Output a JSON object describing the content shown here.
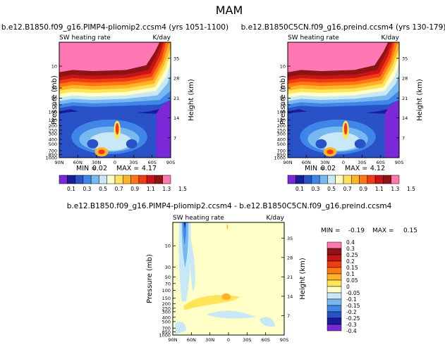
{
  "page_title": "MAM",
  "chart_data": [
    {
      "type": "heatmap",
      "title": "b.e12.B1850.f09_g16.PIMP4-pliomip2.ccsm4 (yrs 1051-1100)",
      "subtitle_left": "SW heating rate",
      "subtitle_right": "K/day",
      "ylabel": "Pressure (mb)",
      "ylabel_right": "Height (km)",
      "x_ticks": [
        "90N",
        "60N",
        "30N",
        "0",
        "30S",
        "60S",
        "90S"
      ],
      "y_ticks": [
        "10",
        "30",
        "50",
        "70",
        "100",
        "150",
        "200",
        "250",
        "300",
        "400",
        "500",
        "700",
        "850",
        "1000"
      ],
      "y2_ticks": [
        "35",
        "28",
        "21",
        "14",
        "7"
      ],
      "stats": {
        "min_label": "MIN =",
        "min": "0.02",
        "max_label": "MAX =",
        "max": "4.17"
      },
      "palette": [
        "#7a28d8",
        "#1a1a9a",
        "#2a52c8",
        "#3f86e8",
        "#78b8f0",
        "#c8e8f8",
        "#ffffc8",
        "#ffe45a",
        "#ffb428",
        "#ff7814",
        "#f03c14",
        "#c81414",
        "#8c1414",
        "#ff78b4"
      ],
      "pattern": "base"
    },
    {
      "type": "heatmap",
      "title": "b.e12.B1850C5CN.f09_g16.preind.ccsm4 (yrs 130-179)",
      "subtitle_left": "SW heating rate",
      "subtitle_right": "K/day",
      "ylabel": "Pressure (mb)",
      "ylabel_right": "Height (km)",
      "x_ticks": [
        "90N",
        "60N",
        "30N",
        "0",
        "30S",
        "60S",
        "90S"
      ],
      "y_ticks": [
        "10",
        "30",
        "50",
        "70",
        "100",
        "150",
        "200",
        "250",
        "300",
        "400",
        "500",
        "700",
        "850",
        "1000"
      ],
      "y2_ticks": [
        "35",
        "28",
        "21",
        "14",
        "7"
      ],
      "stats": {
        "min_label": "MIN =",
        "min": "0.02",
        "max_label": "MAX =",
        "max": "4.12"
      },
      "palette": [
        "#7a28d8",
        "#1a1a9a",
        "#2a52c8",
        "#3f86e8",
        "#78b8f0",
        "#c8e8f8",
        "#ffffc8",
        "#ffe45a",
        "#ffb428",
        "#ff7814",
        "#f03c14",
        "#c81414",
        "#8c1414",
        "#ff78b4"
      ],
      "pattern": "base"
    },
    {
      "type": "heatmap",
      "title": "b.e12.B1850.f09_g16.PIMP4-pliomip2.ccsm4 - b.e12.B1850C5CN.f09_g16.preind.ccsm4",
      "subtitle_left": "SW heating rate",
      "subtitle_right": "K/day",
      "ylabel": "Pressure (mb)",
      "ylabel_right": "Height (km)",
      "x_ticks": [
        "90N",
        "60N",
        "30N",
        "0",
        "30S",
        "60S",
        "90S"
      ],
      "y_ticks": [
        "10",
        "30",
        "50",
        "70",
        "100",
        "150",
        "200",
        "250",
        "300",
        "400",
        "500",
        "700",
        "850",
        "1000"
      ],
      "y2_ticks": [
        "35",
        "28",
        "21",
        "14",
        "7"
      ],
      "stats": {
        "min_label": "MIN =",
        "min": "-0.19",
        "max_label": "MAX =",
        "max": "0.15"
      },
      "palette": [
        "#7a28d8",
        "#1a1a9a",
        "#2a52c8",
        "#3f86e8",
        "#78b8f0",
        "#c8e8f8",
        "#ffffc8",
        "#ffe45a",
        "#ffb428",
        "#ff7814",
        "#f03c14",
        "#c81414",
        "#8c1414",
        "#ff78b4"
      ],
      "pattern": "diff"
    }
  ],
  "colorbar_main": {
    "labels": [
      "0.1",
      "0.3",
      "0.5",
      "0.7",
      "0.9",
      "1.1",
      "1.3",
      "1.5"
    ],
    "colors": [
      "#7a28d8",
      "#1a1a9a",
      "#2a52c8",
      "#3f86e8",
      "#78b8f0",
      "#c8e8f8",
      "#ffffc8",
      "#ffe45a",
      "#ffb428",
      "#ff7814",
      "#f03c14",
      "#c81414",
      "#8c1414",
      "#ff78b4"
    ]
  },
  "colorbar_diff": {
    "labels": [
      "0.4",
      "0.3",
      "0.25",
      "0.2",
      "0.15",
      "0.1",
      "0.05",
      "0",
      "-0.05",
      "-0.1",
      "-0.15",
      "-0.2",
      "-0.25",
      "-0.3",
      "-0.4"
    ],
    "colors": [
      "#ff78b4",
      "#8c1414",
      "#c81414",
      "#f03c14",
      "#ff7814",
      "#ffb428",
      "#ffe45a",
      "#ffffc8",
      "#c8e8f8",
      "#78b8f0",
      "#3f86e8",
      "#2a52c8",
      "#1a1a9a",
      "#7a28d8"
    ]
  }
}
